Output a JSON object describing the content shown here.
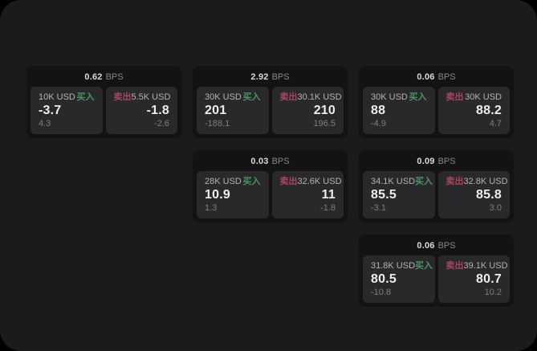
{
  "labels": {
    "bps_unit": "BPS",
    "buy": "买入",
    "sell": "卖出"
  },
  "colors": {
    "page_bg": "#000000",
    "panel_bg": "#1b1b1d",
    "card_bg": "#131314",
    "subpanel_bg": "#29292b",
    "buy_green": "#46965f",
    "sell_red": "#a8465c"
  },
  "cards": [
    {
      "row": 1,
      "col": 1,
      "bps": "0.62",
      "buy": {
        "amount": "10K USD",
        "value": "-3.7",
        "sub": "4.3"
      },
      "sell": {
        "amount": "5.5K USD",
        "value": "-1.8",
        "sub": "-2.6"
      }
    },
    {
      "row": 1,
      "col": 2,
      "bps": "2.92",
      "buy": {
        "amount": "30K USD",
        "value": "201",
        "sub": "-188.1"
      },
      "sell": {
        "amount": "30.1K USD",
        "value": "210",
        "sub": "196.5"
      }
    },
    {
      "row": 1,
      "col": 3,
      "bps": "0.06",
      "buy": {
        "amount": "30K USD",
        "value": "88",
        "sub": "-4.9"
      },
      "sell": {
        "amount": "30K USD",
        "value": "88.2",
        "sub": "4.7"
      }
    },
    {
      "row": 2,
      "col": 2,
      "bps": "0.03",
      "buy": {
        "amount": "28K USD",
        "value": "10.9",
        "sub": "1.3"
      },
      "sell": {
        "amount": "32.6K USD",
        "value": "11",
        "sub": "-1.8"
      }
    },
    {
      "row": 2,
      "col": 3,
      "bps": "0.09",
      "buy": {
        "amount": "34.1K USD",
        "value": "85.5",
        "sub": "-3.1"
      },
      "sell": {
        "amount": "32.8K USD",
        "value": "85.8",
        "sub": "3.0"
      }
    },
    {
      "row": 3,
      "col": 3,
      "bps": "0.06",
      "buy": {
        "amount": "31.8K USD",
        "value": "80.5",
        "sub": "-10.8"
      },
      "sell": {
        "amount": "39.1K USD",
        "value": "80.7",
        "sub": "10.2"
      }
    }
  ]
}
